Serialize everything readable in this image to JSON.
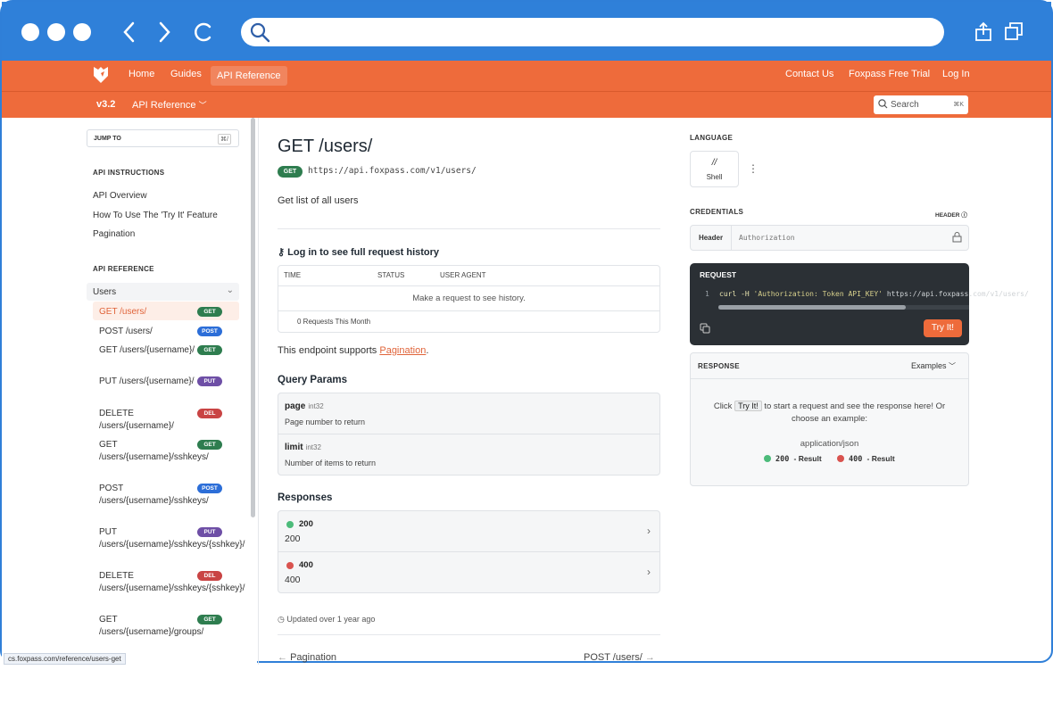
{
  "colors": {
    "chrome": "#2f80d9",
    "brand": "#ee6b3b",
    "get": "#2e7d4f",
    "post": "#2c6ed8",
    "put": "#6e4fa6",
    "delete": "#c94444",
    "ok_dot": "#4cbb7a",
    "err_dot": "#d9534f"
  },
  "browser": {
    "icons": [
      "back-icon",
      "forward-icon",
      "reload-icon",
      "search-icon",
      "share-icon",
      "tabs-icon"
    ],
    "back": "<",
    "forward": ">",
    "reload": "C",
    "address": ""
  },
  "topnav": {
    "links": [
      "Home",
      "Guides",
      "API Reference"
    ],
    "right": [
      "Contact Us",
      "Foxpass Free Trial",
      "Log In"
    ]
  },
  "subnav": {
    "version": "v3.2",
    "section": "API Reference",
    "search_label": "Search",
    "search_kbd": "⌘K"
  },
  "sidebar": {
    "jump_label": "JUMP TO",
    "jump_kbd": "⌘/",
    "instructions_heading": "API INSTRUCTIONS",
    "instructions": [
      "API Overview",
      "How To Use The 'Try It' Feature",
      "Pagination"
    ],
    "reference_heading": "API REFERENCE",
    "group": "Users",
    "endpoints": [
      {
        "label": "GET /users/",
        "method": "GET"
      },
      {
        "label": "POST /users/",
        "method": "POST"
      },
      {
        "label": "GET /users/{username}/",
        "method": "GET"
      },
      {
        "label": "PUT /users/{username}/",
        "method": "PUT"
      },
      {
        "label": "DELETE /users/{username}/",
        "method": "DEL"
      },
      {
        "label": "GET /users/{username}/sshkeys/",
        "method": "GET"
      },
      {
        "label": "POST /users/{username}/sshkeys/",
        "method": "POST"
      },
      {
        "label": "PUT /users/{username}/sshkeys/{sshkey}/",
        "method": "PUT"
      },
      {
        "label": "DELETE /users/{username}/sshkeys/{sshkey}/",
        "method": "DEL"
      },
      {
        "label": "GET /users/{username}/groups/",
        "method": "GET"
      }
    ],
    "status_url": "cs.foxpass.com/reference/users-get"
  },
  "main": {
    "title": "GET /users/",
    "method": "GET",
    "url": "https://api.foxpass.com/v1/users/",
    "description": "Get list of all users",
    "history_heading": "Log in to see full request history",
    "history_cols": [
      "TIME",
      "STATUS",
      "USER AGENT"
    ],
    "history_empty": "Make a request to see history.",
    "history_count": "0 Requests This Month",
    "supports_prefix": "This endpoint supports ",
    "supports_link": "Pagination",
    "supports_suffix": ".",
    "query_heading": "Query Params",
    "params": [
      {
        "name": "page",
        "type": "int32",
        "desc": "Page number to return"
      },
      {
        "name": "limit",
        "type": "int32",
        "desc": "Number of items to return"
      }
    ],
    "responses_heading": "Responses",
    "responses": [
      {
        "code": "200",
        "label": "200"
      },
      {
        "code": "400",
        "label": "400"
      }
    ],
    "updated": "Updated over 1 year ago",
    "prev": "Pagination",
    "next": "POST /users/"
  },
  "right": {
    "language_heading": "LANGUAGE",
    "language_icon": "//",
    "language": "Shell",
    "credentials_heading": "CREDENTIALS",
    "header_tag": "HEADER",
    "header_label": "Header",
    "auth_placeholder": "Authorization",
    "request_heading": "REQUEST",
    "line_no": "1",
    "code_cmd": "curl -H ",
    "code_str": "'Authorization: Token API_KEY'",
    "code_url": " https://api.foxpass.com/v1/users/",
    "try_label": "Try It!",
    "response_heading": "RESPONSE",
    "examples_label": "Examples",
    "click_prefix": "Click ",
    "click_btn": "Try It!",
    "click_suffix": " to start a request and see the response here! Or choose an example:",
    "mime": "application/json",
    "examples": [
      {
        "code": "200",
        "result": "Result"
      },
      {
        "code": "400",
        "result": "Result"
      }
    ]
  }
}
